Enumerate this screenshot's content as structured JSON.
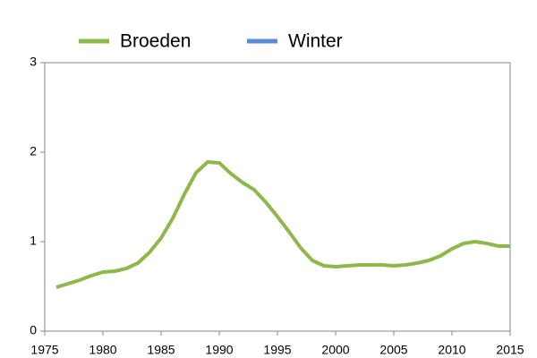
{
  "chart_data": {
    "type": "line",
    "x": [
      1976,
      1977,
      1978,
      1979,
      1980,
      1981,
      1982,
      1983,
      1984,
      1985,
      1986,
      1987,
      1988,
      1989,
      1990,
      1991,
      1992,
      1993,
      1994,
      1995,
      1996,
      1997,
      1998,
      1999,
      2000,
      2001,
      2002,
      2003,
      2004,
      2005,
      2006,
      2007,
      2008,
      2009,
      2010,
      2011,
      2012,
      2013,
      2014,
      2015
    ],
    "series": [
      {
        "name": "Broeden",
        "color": "#8fb84a",
        "values": [
          0.49,
          0.53,
          0.57,
          0.62,
          0.66,
          0.67,
          0.7,
          0.76,
          0.88,
          1.04,
          1.26,
          1.53,
          1.77,
          1.89,
          1.88,
          1.76,
          1.66,
          1.58,
          1.44,
          1.28,
          1.11,
          0.93,
          0.79,
          0.73,
          0.72,
          0.73,
          0.74,
          0.74,
          0.74,
          0.73,
          0.74,
          0.76,
          0.79,
          0.84,
          0.92,
          0.98,
          1.0,
          0.98,
          0.95,
          0.95
        ]
      },
      {
        "name": "Winter",
        "color": "#5b8bd4",
        "values": [
          null,
          null,
          null,
          null,
          null,
          null,
          null,
          null,
          null,
          null,
          null,
          null,
          null,
          null,
          null,
          null,
          null,
          null,
          null,
          null,
          null,
          null,
          null,
          null,
          null,
          null,
          null,
          null,
          null,
          null,
          null,
          null,
          null,
          null,
          null,
          null,
          null,
          null,
          null,
          null
        ]
      }
    ],
    "xlim": [
      1975,
      2015
    ],
    "xticks": [
      1975,
      1980,
      1985,
      1990,
      1995,
      2000,
      2005,
      2010,
      2015
    ],
    "ylim": [
      0,
      3
    ],
    "yticks": [
      0,
      1,
      2,
      3
    ]
  }
}
